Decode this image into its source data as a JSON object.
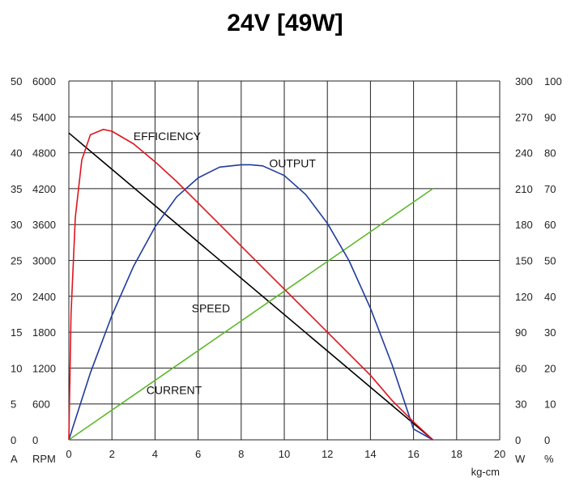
{
  "chart_data": {
    "type": "line",
    "title": "24V [49W]",
    "xlabel": "kg-cm",
    "xlim": [
      0,
      20
    ],
    "x_ticks": [
      "0",
      "2",
      "4",
      "6",
      "8",
      "10",
      "12",
      "14",
      "16",
      "18",
      "20"
    ],
    "grid": true,
    "axes": {
      "current_A": {
        "unit_label": "A",
        "range": [
          0,
          50
        ],
        "ticks": [
          "0",
          "5",
          "10",
          "15",
          "20",
          "25",
          "30",
          "35",
          "40",
          "45",
          "50"
        ]
      },
      "speed_RPM": {
        "unit_label": "RPM",
        "range": [
          0,
          6000
        ],
        "ticks": [
          "0",
          "600",
          "1200",
          "1800",
          "2400",
          "3000",
          "3600",
          "4200",
          "4800",
          "5400",
          "6000"
        ]
      },
      "output_W": {
        "unit_label": "W",
        "range": [
          0,
          300
        ],
        "ticks": [
          "0",
          "30",
          "60",
          "90",
          "120",
          "150",
          "180",
          "210",
          "240",
          "270",
          "300"
        ]
      },
      "efficiency_pct": {
        "unit_label": "%",
        "range": [
          0,
          100
        ],
        "ticks": [
          "0",
          "10",
          "20",
          "30",
          "40",
          "50",
          "60",
          "70",
          "80",
          "90",
          "100"
        ]
      }
    },
    "series": [
      {
        "name": "SPEED",
        "axis": "speed_RPM",
        "color": "#000000",
        "points": [
          [
            0,
            5130
          ],
          [
            16.9,
            0
          ]
        ]
      },
      {
        "name": "CURRENT",
        "axis": "current_A",
        "color": "#5cb82b",
        "points": [
          [
            0,
            0
          ],
          [
            16.9,
            35
          ]
        ]
      },
      {
        "name": "OUTPUT",
        "axis": "output_W",
        "color": "#1f3b9e",
        "points": [
          [
            0,
            0
          ],
          [
            1,
            56
          ],
          [
            2,
            104
          ],
          [
            3,
            145
          ],
          [
            4,
            178
          ],
          [
            5,
            203
          ],
          [
            6,
            219
          ],
          [
            7,
            228
          ],
          [
            8,
            230
          ],
          [
            8.45,
            230
          ],
          [
            9,
            229
          ],
          [
            10,
            221
          ],
          [
            11,
            205
          ],
          [
            12,
            181
          ],
          [
            13,
            150
          ],
          [
            14,
            110
          ],
          [
            15,
            63
          ],
          [
            16,
            9
          ],
          [
            16.9,
            0
          ]
        ]
      },
      {
        "name": "EFFICIENCY",
        "axis": "efficiency_pct",
        "color": "#e0141e",
        "points": [
          [
            0,
            0
          ],
          [
            0.1,
            35
          ],
          [
            0.3,
            62
          ],
          [
            0.6,
            78
          ],
          [
            1,
            85
          ],
          [
            1.6,
            86.5
          ],
          [
            2,
            86
          ],
          [
            3,
            82.5
          ],
          [
            4,
            77.5
          ],
          [
            5,
            72
          ],
          [
            6,
            66
          ],
          [
            7,
            60
          ],
          [
            8,
            54
          ],
          [
            9,
            48
          ],
          [
            10,
            42
          ],
          [
            11,
            36
          ],
          [
            12,
            30
          ],
          [
            13,
            24
          ],
          [
            14,
            18
          ],
          [
            15,
            11
          ],
          [
            16,
            5
          ],
          [
            16.9,
            0
          ]
        ]
      }
    ]
  }
}
